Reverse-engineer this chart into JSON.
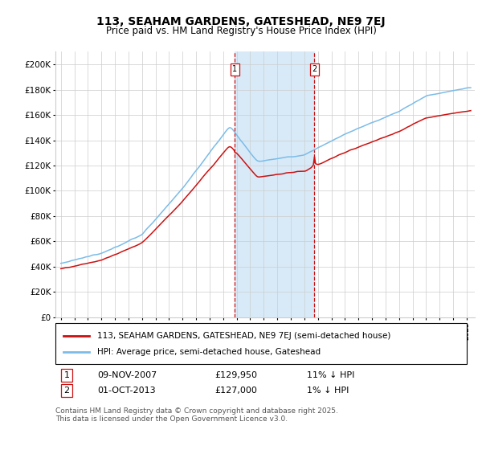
{
  "title": "113, SEAHAM GARDENS, GATESHEAD, NE9 7EJ",
  "subtitle": "Price paid vs. HM Land Registry's House Price Index (HPI)",
  "ylim": [
    0,
    210000
  ],
  "yticks": [
    0,
    20000,
    40000,
    60000,
    80000,
    100000,
    120000,
    140000,
    160000,
    180000,
    200000
  ],
  "ytick_labels": [
    "£0",
    "£20K",
    "£40K",
    "£60K",
    "£80K",
    "£100K",
    "£120K",
    "£140K",
    "£160K",
    "£180K",
    "£200K"
  ],
  "hpi_color": "#7bbce8",
  "price_color": "#cc1111",
  "sale1_date": "09-NOV-2007",
  "sale1_price": 129950,
  "sale1_pct": "11% ↓ HPI",
  "sale2_date": "01-OCT-2013",
  "sale2_price": 127000,
  "sale2_pct": "1% ↓ HPI",
  "sale1_x": 2007.86,
  "sale2_x": 2013.75,
  "legend_line1": "113, SEAHAM GARDENS, GATESHEAD, NE9 7EJ (semi-detached house)",
  "legend_line2": "HPI: Average price, semi-detached house, Gateshead",
  "footnote": "Contains HM Land Registry data © Crown copyright and database right 2025.\nThis data is licensed under the Open Government Licence v3.0.",
  "bg_highlight_color": "#d8eaf8",
  "vline_color": "#cc1111",
  "grid_color": "#cccccc",
  "title_fontsize": 10,
  "subtitle_fontsize": 8.5,
  "tick_fontsize": 7.5,
  "legend_fontsize": 7.5
}
